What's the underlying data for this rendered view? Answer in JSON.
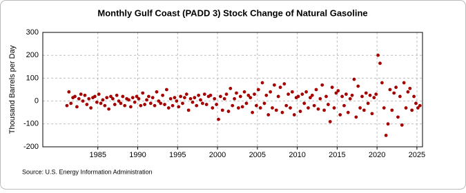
{
  "chart_data": {
    "type": "scatter",
    "title": "Monthly Gulf Coast (PADD 3) Stock Change of Natural Gasoline",
    "y_label": "Thousand Barrels per Day",
    "source": "Source: U.S. Energy Information Administration",
    "color": "#a50000",
    "grid": true,
    "xlim": [
      1978.1,
      2025.7
    ],
    "xticks": [
      1985,
      1990,
      1995,
      2000,
      2005,
      2010,
      2015,
      2020,
      2025
    ],
    "ylim": [
      -200,
      300
    ],
    "yticks": [
      -200,
      -100,
      0,
      100,
      200,
      300
    ],
    "x": [
      1981.125,
      1981.375,
      1981.625,
      1981.875,
      1982.125,
      1982.375,
      1982.625,
      1982.875,
      1983.125,
      1983.375,
      1983.625,
      1983.875,
      1984.125,
      1984.375,
      1984.625,
      1984.875,
      1985.125,
      1985.375,
      1985.625,
      1985.875,
      1986.125,
      1986.375,
      1986.625,
      1986.875,
      1987.125,
      1987.375,
      1987.625,
      1987.875,
      1988.125,
      1988.375,
      1988.625,
      1988.875,
      1989.125,
      1989.375,
      1989.625,
      1989.875,
      1990.125,
      1990.375,
      1990.625,
      1990.875,
      1991.125,
      1991.375,
      1991.625,
      1991.875,
      1992.125,
      1992.375,
      1992.625,
      1992.875,
      1993.125,
      1993.375,
      1993.625,
      1993.875,
      1994.125,
      1994.375,
      1994.625,
      1994.875,
      1995.125,
      1995.375,
      1995.625,
      1995.875,
      1996.125,
      1996.375,
      1996.625,
      1996.875,
      1997.125,
      1997.375,
      1997.625,
      1997.875,
      1998.125,
      1998.375,
      1998.625,
      1998.875,
      1999.125,
      1999.375,
      1999.625,
      1999.875,
      2000.125,
      2000.375,
      2000.625,
      2000.875,
      2001.125,
      2001.375,
      2001.625,
      2001.875,
      2002.125,
      2002.375,
      2002.625,
      2002.875,
      2003.125,
      2003.375,
      2003.625,
      2003.875,
      2004.125,
      2004.375,
      2004.625,
      2004.875,
      2005.125,
      2005.375,
      2005.625,
      2005.875,
      2006.125,
      2006.375,
      2006.625,
      2006.875,
      2007.125,
      2007.375,
      2007.625,
      2007.875,
      2008.125,
      2008.375,
      2008.625,
      2008.875,
      2009.125,
      2009.375,
      2009.625,
      2009.875,
      2010.125,
      2010.375,
      2010.625,
      2010.875,
      2011.125,
      2011.375,
      2011.625,
      2011.875,
      2012.125,
      2012.375,
      2012.625,
      2012.875,
      2013.125,
      2013.375,
      2013.625,
      2013.875,
      2014.125,
      2014.375,
      2014.625,
      2014.875,
      2015.125,
      2015.375,
      2015.625,
      2015.875,
      2016.125,
      2016.375,
      2016.625,
      2016.875,
      2017.125,
      2017.375,
      2017.625,
      2017.875,
      2018.125,
      2018.375,
      2018.625,
      2018.875,
      2019.125,
      2019.375,
      2019.625,
      2019.875,
      2020.125,
      2020.375,
      2020.625,
      2020.875,
      2021.125,
      2021.375,
      2021.625,
      2021.875,
      2022.125,
      2022.375,
      2022.625,
      2022.875,
      2023.125,
      2023.375,
      2023.625,
      2023.875,
      2024.125,
      2024.375,
      2024.625,
      2024.875,
      2025.125,
      2025.375
    ],
    "values": [
      -20,
      40,
      -10,
      15,
      20,
      -25,
      10,
      30,
      0,
      25,
      -15,
      10,
      -30,
      15,
      20,
      -5,
      30,
      -10,
      5,
      -20,
      15,
      -35,
      20,
      10,
      -15,
      25,
      0,
      -10,
      20,
      -20,
      10,
      5,
      -25,
      15,
      -5,
      20,
      10,
      -20,
      35,
      -15,
      5,
      20,
      -10,
      15,
      -20,
      40,
      0,
      -10,
      25,
      -15,
      50,
      -30,
      10,
      -20,
      15,
      0,
      -25,
      20,
      -10,
      15,
      30,
      -40,
      10,
      -5,
      15,
      -20,
      25,
      5,
      -10,
      30,
      -15,
      20,
      25,
      -30,
      10,
      -15,
      -80,
      20,
      -40,
      10,
      30,
      -45,
      55,
      -20,
      10,
      35,
      -30,
      20,
      -25,
      40,
      -10,
      25,
      15,
      -50,
      30,
      -20,
      50,
      -30,
      80,
      -10,
      25,
      -60,
      40,
      -30,
      70,
      -40,
      20,
      60,
      -50,
      75,
      -20,
      30,
      -30,
      40,
      -60,
      15,
      20,
      -45,
      30,
      -10,
      40,
      -30,
      15,
      25,
      -20,
      50,
      -35,
      10,
      70,
      -40,
      20,
      -15,
      -90,
      60,
      -30,
      35,
      45,
      -60,
      20,
      -20,
      30,
      -50,
      10,
      25,
      95,
      -70,
      65,
      -30,
      20,
      -40,
      35,
      -10,
      25,
      -55,
      15,
      30,
      200,
      165,
      80,
      -30,
      -150,
      -100,
      50,
      -40,
      35,
      60,
      -70,
      20,
      -105,
      80,
      -30,
      40,
      55,
      -40,
      20,
      -10,
      -30,
      -20
    ]
  }
}
